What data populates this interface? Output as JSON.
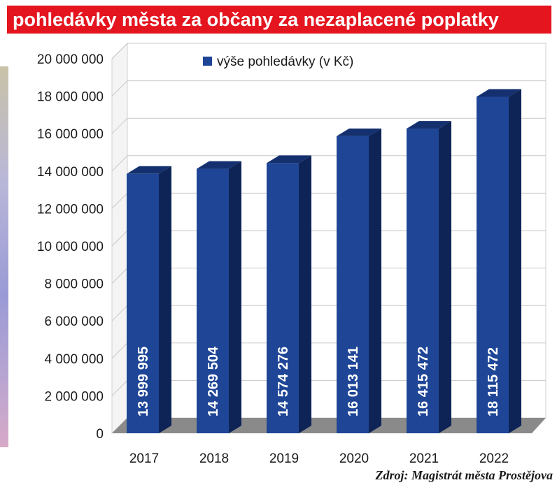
{
  "header": {
    "title": "pohledávky města za občany za nezaplacené poplatky"
  },
  "footer": {
    "source": "Zdroj: Magistrát města Prostějova"
  },
  "colors": {
    "title_bg": "#e4151f",
    "bar_front": "#1e4596",
    "bar_top": "#14306e",
    "bar_side": "#0e2456",
    "floor": "#8a8a8a"
  },
  "chart_data": {
    "type": "bar",
    "categories": [
      "2017",
      "2018",
      "2019",
      "2020",
      "2021",
      "2022"
    ],
    "series": [
      {
        "name": "výše pohledávky (v Kč)",
        "values": [
          13999995,
          14269504,
          14574276,
          16013141,
          16415472,
          18115472
        ]
      }
    ],
    "data_labels": [
      "13 999 995",
      "14 269 504",
      "14 574 276",
      "16 013 141",
      "16 415 472",
      "18 115 472"
    ],
    "yticks": [
      0,
      2000000,
      4000000,
      6000000,
      8000000,
      10000000,
      12000000,
      14000000,
      16000000,
      18000000,
      20000000
    ],
    "ytick_labels": [
      "0",
      "2 000 000",
      "4 000 000",
      "6 000 000",
      "8 000 000",
      "10 000 000",
      "12 000 000",
      "14 000 000",
      "16 000 000",
      "18 000 000",
      "20 000 000"
    ],
    "ylim": [
      0,
      20000000
    ],
    "legend_position": "top",
    "grid": true,
    "style": "3d"
  }
}
